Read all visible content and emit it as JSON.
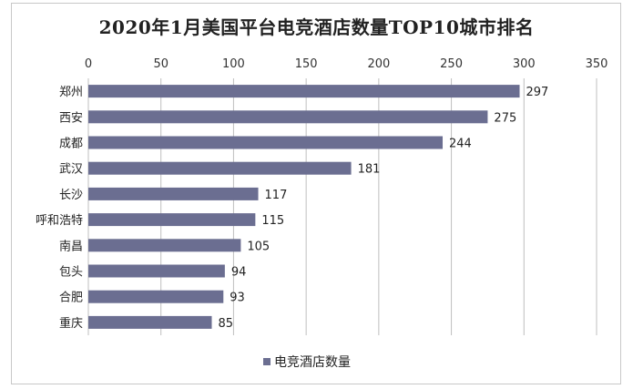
{
  "chart_data": {
    "type": "bar",
    "orientation": "horizontal",
    "title": "2020年1月美国平台电竞酒店数量TOP10城市排名",
    "categories": [
      "郑州",
      "西安",
      "成都",
      "武汉",
      "长沙",
      "呼和浩特",
      "南昌",
      "包头",
      "合肥",
      "重庆"
    ],
    "series": [
      {
        "name": "电竞酒店数量",
        "values": [
          297,
          275,
          244,
          181,
          117,
          115,
          105,
          94,
          93,
          85
        ]
      }
    ],
    "xlim": [
      0,
      350
    ],
    "xticks": [
      0,
      50,
      100,
      150,
      200,
      250,
      300,
      350
    ],
    "x_axis_position": "top",
    "grid": "vertical",
    "legend": "bottom",
    "colors": {
      "bar": "#6b6e91",
      "grid": "#bfbfbf"
    }
  }
}
